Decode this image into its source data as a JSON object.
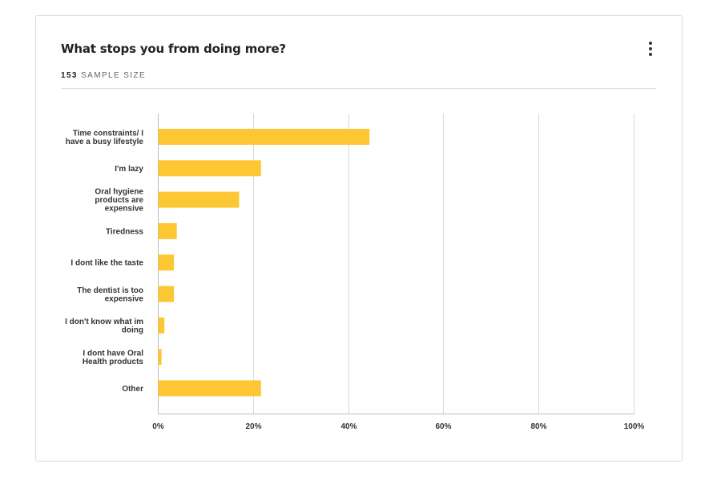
{
  "header": {
    "title": "What stops you from doing more?",
    "sample_count": "153",
    "sample_label": "SAMPLE SIZE"
  },
  "icons": {
    "menu": "kebab-menu-icon"
  },
  "colors": {
    "bar": "#FDC734",
    "grid": "#d9d9d9",
    "axis": "#bbbbbb"
  },
  "chart_data": {
    "type": "bar",
    "orientation": "horizontal",
    "categories": [
      [
        "Time constraints/ I",
        "have a busy lifestyle"
      ],
      [
        "I'm lazy"
      ],
      [
        "Oral hygiene",
        "products are",
        "expensive"
      ],
      [
        "Tiredness"
      ],
      [
        "I dont like the taste"
      ],
      [
        "The dentist is too",
        "expensive"
      ],
      [
        "I don't know what im",
        "doing"
      ],
      [
        "I dont have Oral",
        "Health products"
      ],
      [
        "Other"
      ]
    ],
    "values": [
      44.4,
      21.6,
      17.0,
      3.9,
      3.3,
      3.3,
      1.3,
      0.7,
      21.6
    ],
    "xlim": [
      0,
      100
    ],
    "xticks": [
      "0%",
      "20%",
      "40%",
      "60%",
      "80%",
      "100%"
    ],
    "grid": true
  }
}
